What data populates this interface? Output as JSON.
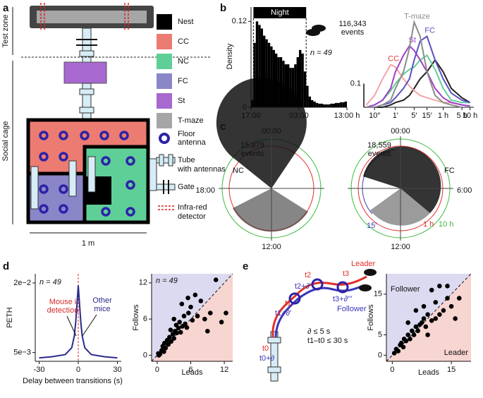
{
  "labels": [
    "a",
    "b",
    "c",
    "d",
    "e"
  ],
  "panel_a": {
    "test_zone": "Test zone",
    "social_cage": "Social cage",
    "scale": "1 m",
    "legend": [
      {
        "name": "Nest",
        "color": "#000000"
      },
      {
        "name": "CC",
        "color": "#ec7b72"
      },
      {
        "name": "NC",
        "color": "#5fcf98"
      },
      {
        "name": "FC",
        "color": "#8a86c8"
      },
      {
        "name": "St",
        "color": "#a768cf"
      },
      {
        "name": "T-maze",
        "color": "#a6a6a6"
      }
    ],
    "floor_antenna": [
      "Floor",
      "antenna"
    ],
    "tube": [
      "Tube",
      "with antennas"
    ],
    "gate": "Gate",
    "infrared": [
      "Infra-red",
      "detector"
    ]
  },
  "chart_data": [
    {
      "type": "histogram",
      "ylabel": "Density",
      "color": "#000000",
      "bins": [
        0,
        0.5,
        1,
        1.5,
        2,
        2.5,
        3,
        3.5,
        4,
        4.5,
        5,
        5.5,
        6,
        6.5,
        7,
        7.5,
        8,
        8.5,
        9,
        9.5,
        10,
        10.5,
        11,
        11.5,
        12,
        12.5,
        13,
        13.5,
        14,
        14.5,
        15,
        15.5,
        16,
        16.5,
        17,
        17.5,
        18,
        18.5,
        19,
        19.5,
        20
      ],
      "values": [
        0.01,
        0.09,
        0.12,
        0.115,
        0.11,
        0.1,
        0.095,
        0.09,
        0.085,
        0.08,
        0.075,
        0.07,
        0.07,
        0.065,
        0.06,
        0.06,
        0.055,
        0.055,
        0.06,
        0.07,
        0.08,
        0.075,
        0.05,
        0.03,
        0.015,
        0.01,
        0.008,
        0.006,
        0.005,
        0.005,
        0.004,
        0.004,
        0.004,
        0.005,
        0.005,
        0.006,
        0.006,
        0.007,
        0.007,
        0.008
      ],
      "xlim": [
        0,
        20
      ],
      "xticks": [
        {
          "value": 0,
          "label": "17:00"
        },
        {
          "value": 10,
          "label": "03:00"
        },
        {
          "value": 20,
          "label": "13:00 h"
        }
      ],
      "ylim": [
        0,
        0.14
      ],
      "yticks": [
        0,
        0.12
      ],
      "annotation": "Night",
      "night": [
        0.5,
        11.5
      ],
      "note": "n = 49"
    },
    {
      "type": "line",
      "log_x": true,
      "title": [
        "116,343",
        "events"
      ],
      "x": [
        5,
        10,
        20,
        40,
        60,
        120,
        200,
        300,
        500,
        900,
        1800,
        3600,
        7200,
        18000,
        36000
      ],
      "xlim": [
        4,
        50000
      ],
      "xticks": [
        {
          "value": 10,
          "label": "10″"
        },
        {
          "value": 60,
          "label": "1′"
        },
        {
          "value": 300,
          "label": "5′"
        },
        {
          "value": 900,
          "label": "15′"
        },
        {
          "value": 3600,
          "label": "1 h"
        },
        {
          "value": 18000,
          "label": "5 h"
        },
        {
          "value": 36000,
          "label": "10 h"
        }
      ],
      "ylim": [
        0,
        0.4
      ],
      "yticks": [
        0.1
      ],
      "series": [
        {
          "color": "#222222",
          "values": [
            0,
            0,
            0,
            0.01,
            0.02,
            0.03,
            0.05,
            0.08,
            0.12,
            0.15,
            0.2,
            0.15,
            0.08,
            0.04,
            0.02
          ]
        },
        {
          "color": "#5fcf98",
          "values": [
            0,
            0.01,
            0.03,
            0.07,
            0.1,
            0.14,
            0.16,
            0.17,
            0.2,
            0.22,
            0.16,
            0.08,
            0.03,
            0.02,
            0.02
          ]
        },
        {
          "name": "CC",
          "color": "#f4a3a8",
          "label_color": "#e0403a",
          "values": [
            0.01,
            0.05,
            0.12,
            0.18,
            0.17,
            0.12,
            0.09,
            0.07,
            0.05,
            0.04,
            0.03,
            0.02,
            0.02,
            0.01,
            0.005
          ]
        },
        {
          "name": "St",
          "color": "#a040c8",
          "values": [
            0,
            0.01,
            0.03,
            0.08,
            0.15,
            0.22,
            0.26,
            0.24,
            0.2,
            0.15,
            0.08,
            0.04,
            0.02,
            0.01,
            0.005
          ]
        },
        {
          "name": "FC",
          "color": "#5a52c0",
          "values": [
            0,
            0,
            0.01,
            0.02,
            0.04,
            0.08,
            0.12,
            0.2,
            0.28,
            0.3,
            0.2,
            0.12,
            0.06,
            0.03,
            0.02
          ]
        },
        {
          "name": "T-maze",
          "color": "#8c8c8c",
          "values": [
            0,
            0,
            0.01,
            0.03,
            0.08,
            0.15,
            0.25,
            0.36,
            0.3,
            0.15,
            0.05,
            0.02,
            0.01,
            0,
            0
          ]
        }
      ]
    },
    {
      "type": "line",
      "log_y": true,
      "xlabel": "Delay between transitions (s)",
      "ylabel": "PETH",
      "color": "#2b2a8c",
      "x": [
        -30,
        -20,
        -10,
        -5,
        -3,
        -2,
        -1,
        0,
        1,
        2,
        3,
        5,
        10,
        20,
        30
      ],
      "values": [
        0.0045,
        0.0046,
        0.0048,
        0.0055,
        0.007,
        0.009,
        0.013,
        0.019,
        0.013,
        0.009,
        0.007,
        0.0055,
        0.0048,
        0.0046,
        0.0045
      ],
      "xlim": [
        -33,
        33
      ],
      "xticks": [
        -30,
        0,
        30
      ],
      "ylim": [
        0.0042,
        0.024
      ],
      "yticks": [
        {
          "value": 0.02,
          "label": "2e−2"
        },
        {
          "value": 0.005,
          "label": "5e−3"
        }
      ],
      "note": "n = 49",
      "annotations": [
        {
          "text": [
            "Mouse i",
            "detection"
          ],
          "color": "#d42a2a"
        },
        {
          "text": [
            "Other",
            "mice"
          ],
          "color": "#2b2a8c"
        }
      ]
    },
    {
      "type": "scatter",
      "xlabel": "Leads",
      "ylabel": "Follows",
      "color": "#000000",
      "note": "n = 49",
      "x": [
        0.2,
        0.5,
        0.8,
        1,
        1.2,
        1.5,
        1.8,
        2,
        2.2,
        2.5,
        2.8,
        3,
        3.2,
        3.5,
        3.8,
        4,
        4.2,
        4.5,
        4.8,
        5,
        5.3,
        5.6,
        6,
        6.3,
        6.8,
        7.2,
        7.8,
        8.5,
        9.5,
        10.5,
        11.5,
        0.3,
        1.3,
        2.4,
        3.4,
        4.4,
        5.5,
        9,
        3,
        12.3
      ],
      "values": [
        0.3,
        0.2,
        0.8,
        1.5,
        0.6,
        1.2,
        2.5,
        1.8,
        3,
        2.3,
        3.5,
        2.8,
        4,
        3.7,
        4.5,
        5.5,
        3.8,
        4.8,
        6.5,
        5.2,
        4.6,
        7,
        8,
        5.8,
        10,
        6.5,
        9,
        6,
        7,
        12.5,
        5.5,
        0,
        2,
        4.2,
        5,
        8.5,
        9.5,
        4,
        6,
        7
      ],
      "xlim": [
        -1,
        13.5
      ],
      "ylim": [
        -1,
        13.5
      ],
      "xticks": [
        0,
        6,
        12
      ],
      "yticks": [
        0,
        6,
        12
      ]
    },
    {
      "type": "scatter",
      "xlabel": "Leads",
      "ylabel": "Follows",
      "color": "#000000",
      "regions": [
        "Follower",
        "Leader"
      ],
      "x": [
        0.5,
        1,
        1.5,
        2,
        2.3,
        2.8,
        3,
        3.5,
        4,
        4.5,
        5,
        5.5,
        6,
        6.5,
        7,
        7.5,
        8,
        8.5,
        9,
        10,
        11,
        12,
        13,
        14,
        15,
        16,
        6,
        8,
        10,
        12,
        14,
        9,
        11,
        4,
        17
      ],
      "values": [
        0.5,
        1.5,
        1,
        2.5,
        3,
        2,
        4,
        3.5,
        5,
        4,
        6,
        5,
        7,
        6,
        7.5,
        8,
        9,
        7,
        10,
        8.5,
        9,
        10,
        11,
        14,
        12,
        9,
        11,
        12,
        16,
        17,
        17,
        5,
        13,
        8,
        14
      ],
      "xlim": [
        -1.5,
        20
      ],
      "ylim": [
        -1.5,
        20
      ],
      "xticks": [
        0,
        15
      ],
      "yticks": [
        0,
        5,
        15
      ]
    }
  ],
  "panel_c": {
    "left": {
      "events": [
        "15,879",
        "events"
      ],
      "label": "NC"
    },
    "right": {
      "events": [
        "18,559",
        "events"
      ],
      "label": "FC"
    },
    "times": {
      "top": "00:00",
      "left": "18:00",
      "bottom": "12:00",
      "right": "6:00"
    },
    "radii": [
      {
        "text": "15′",
        "color": "#3f3fb0"
      },
      {
        "text": "1 h",
        "color": "#e0302a"
      },
      {
        "text": "10 h",
        "color": "#3fb83f"
      }
    ]
  },
  "panel_e": {
    "times": [
      "t0",
      "t0+∂",
      "t1",
      "t1+∂'",
      "t2",
      "t2+∂''",
      "t3",
      "t3+∂'''"
    ],
    "leader": "Leader",
    "follower": "Follower",
    "rules": [
      "∂ ≤ 5 s",
      "t1–t0 ≤ 30 s"
    ]
  }
}
